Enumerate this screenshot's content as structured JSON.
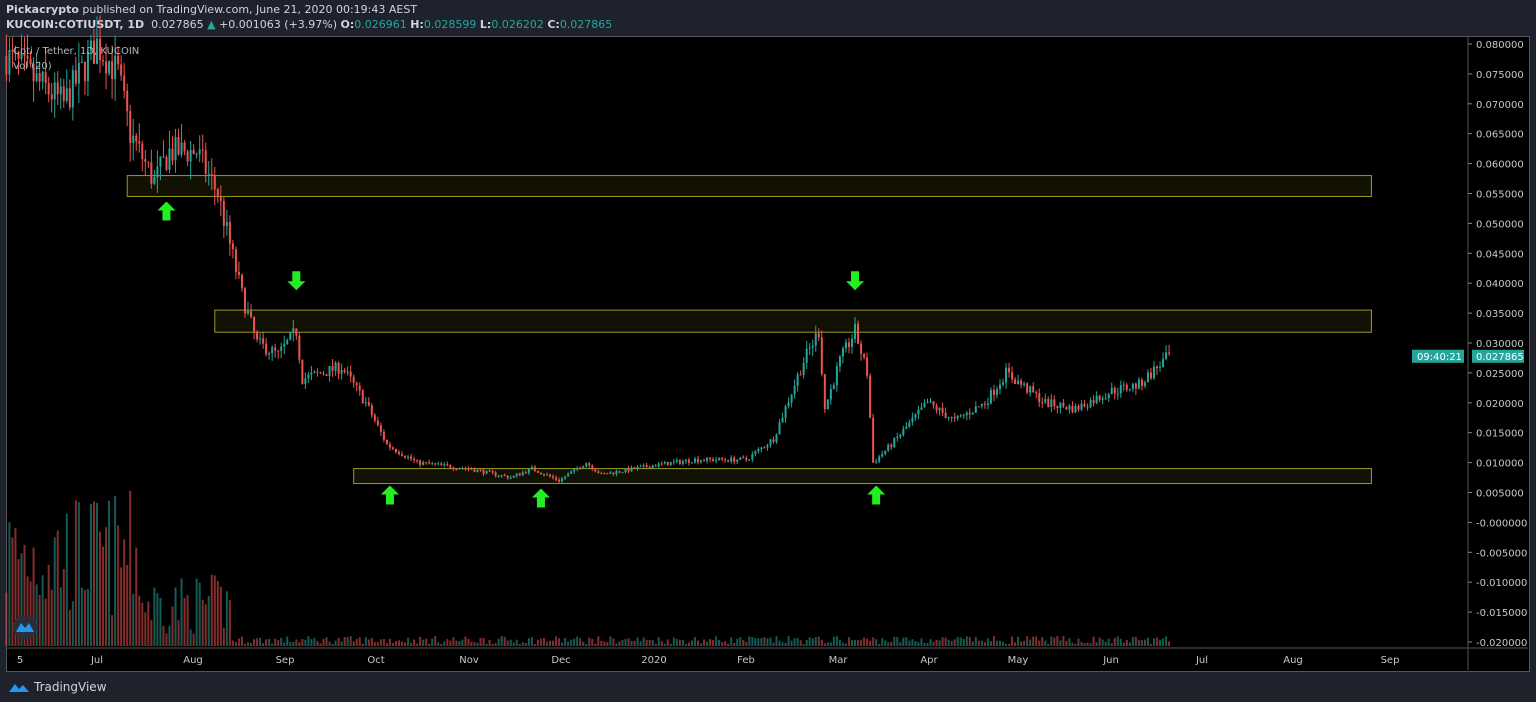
{
  "header": {
    "author": "Pickacrypto",
    "published": "published on TradingView.com, June 21, 2020 00:19:43 AEST",
    "symbol": "KUCOIN:COTIUSDT, 1D",
    "last": "0.027865",
    "change": "+0.001063 (+3.97%)",
    "o_label": "O:",
    "o": "0.026961",
    "h_label": "H:",
    "h": "0.028599",
    "l_label": "L:",
    "l": "0.026202",
    "c_label": "C:",
    "c": "0.027865"
  },
  "legend": {
    "title": "Coti / Tether, 1D, KUCOIN",
    "volume": "Vol (20)"
  },
  "footer": {
    "brand": "TradingView"
  },
  "colors": {
    "up": "#26a69a",
    "down": "#ef5350",
    "zone": "#9a9a20",
    "arrow": "#22ee22"
  },
  "chart_data": {
    "type": "candlestick",
    "yticks": [
      "0.080000",
      "0.075000",
      "0.070000",
      "0.065000",
      "0.060000",
      "0.055000",
      "0.050000",
      "0.045000",
      "0.040000",
      "0.035000",
      "0.030000",
      "0.025000",
      "0.020000",
      "0.015000",
      "0.010000",
      "0.005000",
      "-0.000000",
      "-0.005000",
      "-0.010000",
      "-0.015000",
      "-0.020000"
    ],
    "ylim": [
      -0.02,
      0.08
    ],
    "xticks": [
      "5",
      "Jul",
      "Aug",
      "Sep",
      "Oct",
      "Nov",
      "Dec",
      "2020",
      "Feb",
      "Mar",
      "Apr",
      "May",
      "Jun",
      "Jul",
      "Aug",
      "Sep"
    ],
    "last_price": "0.027865",
    "countdown": "09:40:21",
    "price_path": [
      [
        "2019-06-01",
        0.078
      ],
      [
        "2019-06-20",
        0.07
      ],
      [
        "2019-07-01",
        0.08
      ],
      [
        "2019-07-08",
        0.075
      ],
      [
        "2019-07-12",
        0.065
      ],
      [
        "2019-07-20",
        0.057
      ],
      [
        "2019-07-25",
        0.062
      ],
      [
        "2019-08-03",
        0.062
      ],
      [
        "2019-08-10",
        0.055
      ],
      [
        "2019-08-18",
        0.038
      ],
      [
        "2019-08-23",
        0.03
      ],
      [
        "2019-08-30",
        0.028
      ],
      [
        "2019-09-05",
        0.032
      ],
      [
        "2019-09-07",
        0.024
      ],
      [
        "2019-09-20",
        0.026
      ],
      [
        "2019-09-28",
        0.02
      ],
      [
        "2019-10-05",
        0.013
      ],
      [
        "2019-10-15",
        0.01
      ],
      [
        "2019-11-01",
        0.009
      ],
      [
        "2019-11-15",
        0.0075
      ],
      [
        "2019-11-22",
        0.009
      ],
      [
        "2019-12-01",
        0.007
      ],
      [
        "2019-12-10",
        0.01
      ],
      [
        "2019-12-15",
        0.008
      ],
      [
        "2020-01-01",
        0.0095
      ],
      [
        "2020-01-15",
        0.0105
      ],
      [
        "2020-02-01",
        0.0105
      ],
      [
        "2020-02-10",
        0.014
      ],
      [
        "2020-02-20",
        0.027
      ],
      [
        "2020-02-25",
        0.032
      ],
      [
        "2020-02-27",
        0.019
      ],
      [
        "2020-03-03",
        0.027
      ],
      [
        "2020-03-08",
        0.032
      ],
      [
        "2020-03-12",
        0.025
      ],
      [
        "2020-03-14",
        0.01
      ],
      [
        "2020-03-20",
        0.013
      ],
      [
        "2020-04-01",
        0.02
      ],
      [
        "2020-04-10",
        0.017
      ],
      [
        "2020-04-20",
        0.02
      ],
      [
        "2020-04-27",
        0.025
      ],
      [
        "2020-05-10",
        0.02
      ],
      [
        "2020-05-20",
        0.019
      ],
      [
        "2020-06-01",
        0.022
      ],
      [
        "2020-06-10",
        0.023
      ],
      [
        "2020-06-20",
        0.027865
      ]
    ],
    "zones": [
      {
        "low": 0.0545,
        "high": 0.058,
        "from": "2019-07-11"
      },
      {
        "low": 0.0318,
        "high": 0.0355,
        "from": "2019-08-09"
      },
      {
        "low": 0.0065,
        "high": 0.009,
        "from": "2019-09-24"
      }
    ],
    "zones_to": "2020-08-26",
    "arrows": [
      {
        "dir": "up",
        "date": "2019-07-24",
        "price": 0.052
      },
      {
        "dir": "down",
        "date": "2019-09-05",
        "price": 0.0405
      },
      {
        "dir": "up",
        "date": "2019-10-06",
        "price": 0.0045
      },
      {
        "dir": "up",
        "date": "2019-11-25",
        "price": 0.004
      },
      {
        "dir": "down",
        "date": "2020-03-08",
        "price": 0.0405
      },
      {
        "dir": "up",
        "date": "2020-03-15",
        "price": 0.0045
      }
    ]
  }
}
